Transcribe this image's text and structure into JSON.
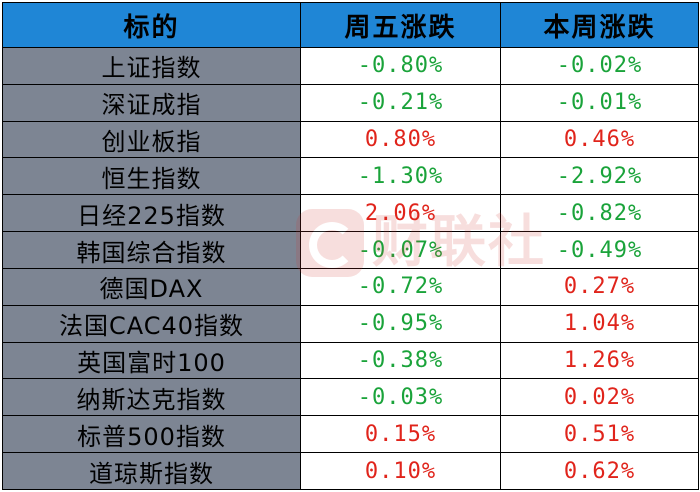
{
  "table": {
    "headers": [
      "标的",
      "周五涨跌",
      "本周涨跌"
    ],
    "rows": [
      {
        "name": "上证指数",
        "friday": "-0.80%",
        "week": "-0.02%"
      },
      {
        "name": "深证成指",
        "friday": "-0.21%",
        "week": "-0.01%"
      },
      {
        "name": "创业板指",
        "friday": "0.80%",
        "week": "0.46%"
      },
      {
        "name": "恒生指数",
        "friday": "-1.30%",
        "week": "-2.92%"
      },
      {
        "name": "日经225指数",
        "friday": "2.06%",
        "week": "-0.82%"
      },
      {
        "name": "韩国综合指数",
        "friday": "-0.07%",
        "week": "-0.49%"
      },
      {
        "name": "德国DAX",
        "friday": "-0.72%",
        "week": "0.27%"
      },
      {
        "name": "法国CAC40指数",
        "friday": "-0.95%",
        "week": "1.04%"
      },
      {
        "name": "英国富时100",
        "friday": "-0.38%",
        "week": "1.26%"
      },
      {
        "name": "纳斯达克指数",
        "friday": "-0.03%",
        "week": "0.02%"
      },
      {
        "name": "标普500指数",
        "friday": "0.15%",
        "week": "0.51%"
      },
      {
        "name": "道琼斯指数",
        "friday": "0.10%",
        "week": "0.62%"
      }
    ]
  },
  "watermark": {
    "text": "财联社"
  },
  "colors": {
    "header_bg": "#1f86d6",
    "name_bg": "#7d8593",
    "negative": "#1aa33a",
    "positive": "#e0241b"
  }
}
